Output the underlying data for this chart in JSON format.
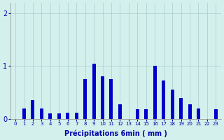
{
  "categories": [
    0,
    1,
    2,
    3,
    4,
    5,
    6,
    7,
    8,
    9,
    10,
    11,
    12,
    13,
    14,
    15,
    16,
    17,
    18,
    19,
    20,
    21,
    22,
    23
  ],
  "values": [
    0.0,
    0.2,
    0.35,
    0.2,
    0.1,
    0.1,
    0.12,
    0.12,
    0.75,
    1.05,
    0.8,
    0.75,
    0.28,
    0.0,
    0.18,
    0.18,
    1.0,
    0.72,
    0.55,
    0.4,
    0.28,
    0.2,
    0.0,
    0.18
  ],
  "bar_color": "#0000cc",
  "bg_color": "#d4f0ec",
  "grid_color": "#aacccc",
  "xlabel": "Précipitations 6min ( mm )",
  "xlabel_fontsize": 7,
  "ylim_max": 2.2,
  "yticks": [
    0,
    1,
    2
  ],
  "tick_color": "#0000aa",
  "bar_width": 0.4
}
